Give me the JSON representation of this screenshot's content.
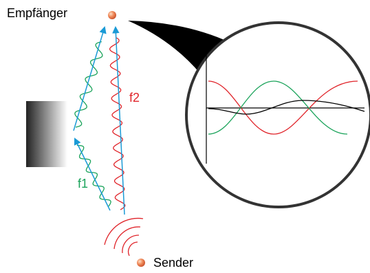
{
  "labels": {
    "receiver": "Empfänger",
    "sender": "Sender",
    "f1": "f1",
    "f2": "f2"
  }
}
